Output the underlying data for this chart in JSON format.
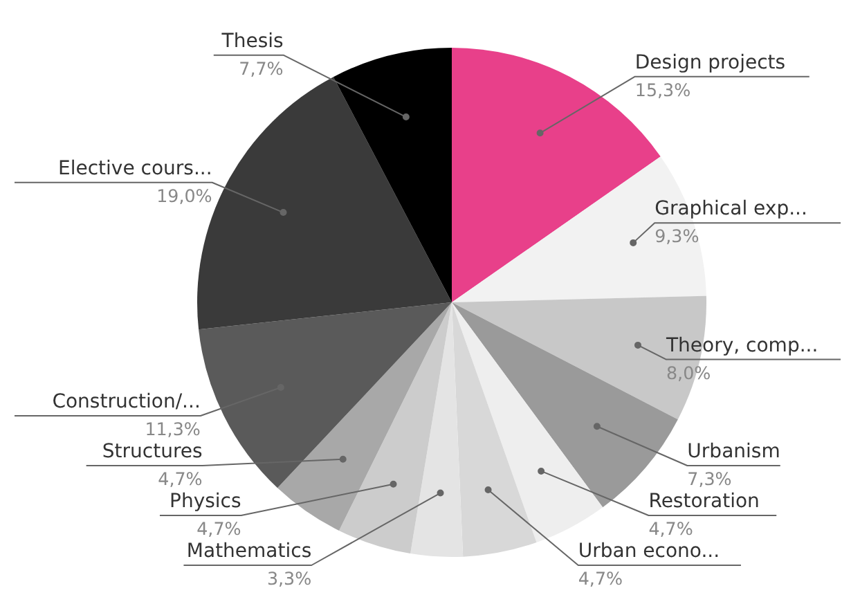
{
  "chart_data": {
    "type": "pie",
    "categories": [
      "Design projects",
      "Graphical exp...",
      "Theory, comp...",
      "Urbanism",
      "Restoration",
      "Urban econo...",
      "Mathematics",
      "Physics",
      "Structures",
      "Construction/...",
      "Elective cours...",
      "Thesis"
    ],
    "values": [
      15.3,
      9.3,
      8.0,
      7.3,
      4.7,
      4.7,
      3.3,
      4.7,
      4.7,
      11.3,
      19.0,
      7.7
    ],
    "value_labels": [
      "15,3%",
      "9,3%",
      "8,0%",
      "7,3%",
      "4,7%",
      "4,7%",
      "3,3%",
      "4,7%",
      "4,7%",
      "11,3%",
      "19,0%",
      "7,7%"
    ],
    "colors": [
      "#e8408a",
      "#f2f2f2",
      "#c8c8c8",
      "#9a9a9a",
      "#eeeeee",
      "#d8d8d8",
      "#e4e4e4",
      "#cccccc",
      "#a8a8a8",
      "#5a5a5a",
      "#3a3a3a",
      "#000000"
    ]
  }
}
